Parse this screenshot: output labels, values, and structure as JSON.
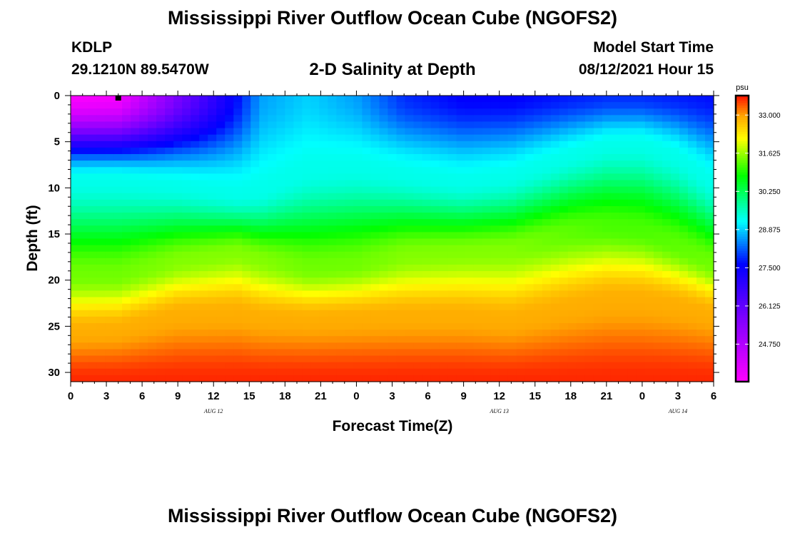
{
  "header": {
    "title": "Mississippi River Outflow Ocean Cube (NGOFS2)",
    "footer_title": "Mississippi River Outflow Ocean Cube (NGOFS2)",
    "station": "KDLP",
    "coordinates": "29.1210N  89.5470W",
    "subtitle": "2-D Salinity at Depth",
    "model_start_label": "Model Start Time",
    "model_start_value": "08/12/2021 Hour 15"
  },
  "chart_data": {
    "type": "heatmap",
    "title": "2-D Salinity at Depth",
    "xlabel": "Forecast Time(Z)",
    "ylabel": "Depth (ft)",
    "x_range_hours": [
      0,
      54
    ],
    "x_tick_labels": [
      "0",
      "3",
      "6",
      "9",
      "12",
      "15",
      "18",
      "21",
      "0",
      "3",
      "6",
      "9",
      "12",
      "15",
      "18",
      "21",
      "0",
      "3",
      "6"
    ],
    "x_tick_hours": [
      0,
      3,
      6,
      9,
      12,
      15,
      18,
      21,
      24,
      27,
      30,
      33,
      36,
      39,
      42,
      45,
      48,
      51,
      54
    ],
    "day_labels": [
      {
        "text": "AUG 12",
        "hour": 12
      },
      {
        "text": "AUG 13",
        "hour": 36
      },
      {
        "text": "AUG 14",
        "hour": 51
      }
    ],
    "y_range_ft": [
      0,
      31
    ],
    "y_reversed": true,
    "y_tick_labels": [
      "0",
      "5",
      "10",
      "15",
      "20",
      "25",
      "30"
    ],
    "y_ticks": [
      0,
      5,
      10,
      15,
      20,
      25,
      30
    ],
    "current_time_marker_hour": 4,
    "colorbar": {
      "unit": "psu",
      "min": 23.4,
      "max": 33.7,
      "ticks": [
        24.75,
        26.125,
        27.5,
        28.875,
        30.25,
        31.625,
        33.0
      ],
      "tick_labels": [
        "24.750",
        "26.125",
        "27.500",
        "28.875",
        "30.250",
        "31.625",
        "33.000"
      ]
    },
    "profiles_approx": {
      "hours": [
        0,
        4,
        9,
        14,
        16,
        20,
        24,
        28,
        33,
        37,
        42,
        45,
        48,
        51,
        54
      ],
      "surface_psu": [
        23.5,
        23.6,
        25.8,
        27.7,
        28.6,
        28.9,
        28.6,
        27.9,
        27.6,
        27.6,
        27.8,
        27.9,
        27.9,
        27.8,
        27.7
      ],
      "bottom_psu": [
        33.6,
        33.6,
        33.6,
        33.6,
        33.6,
        33.6,
        33.6,
        33.6,
        33.6,
        33.6,
        33.6,
        33.6,
        33.6,
        33.6,
        33.6
      ],
      "halocline_ft": [
        9.2,
        9.2,
        9.8,
        10.8,
        10.5,
        8.2,
        7.8,
        8.6,
        9.5,
        8.8,
        6.5,
        5.3,
        5.2,
        6.6,
        9.6
      ],
      "mid_depth_ft": [
        19.5,
        19.5,
        18.0,
        17.0,
        17.8,
        18.8,
        18.4,
        17.4,
        17.0,
        16.8,
        14.8,
        14.2,
        14.6,
        16.4,
        18.4
      ],
      "mid_psu": [
        31.4,
        31.4,
        31.5,
        31.5,
        31.5,
        31.4,
        31.4,
        31.5,
        31.5,
        31.5,
        31.3,
        31.2,
        31.2,
        31.3,
        31.4
      ],
      "deep_depth_ft": [
        25.5,
        25.3,
        23.6,
        23.4,
        24.0,
        24.2,
        24.0,
        23.8,
        23.8,
        24.3,
        22.8,
        22.0,
        22.0,
        22.6,
        23.6
      ]
    }
  }
}
